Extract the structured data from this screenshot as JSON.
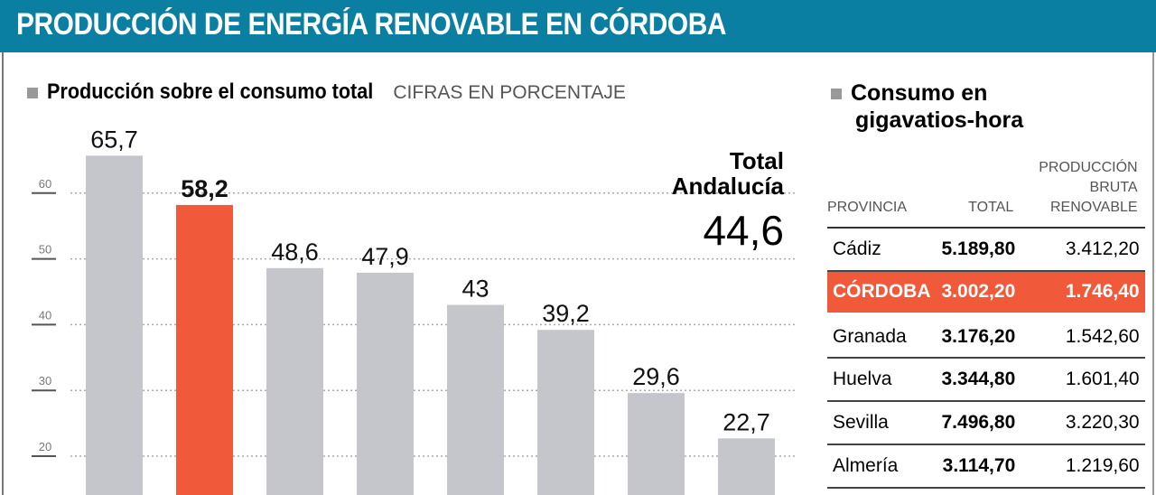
{
  "header": {
    "title": "PRODUCCIÓN DE ENERGÍA RENOVABLE EN CÓRDOBA"
  },
  "chart_data": {
    "type": "bar",
    "title": "Producción sobre el consumo total",
    "subtitle": "CIFRAS EN PORCENTAJE",
    "values": [
      65.7,
      58.2,
      48.6,
      47.9,
      43,
      39.2,
      29.6,
      22.7
    ],
    "value_labels": [
      "65,7",
      "58,2",
      "48,6",
      "47,9",
      "43",
      "39,2",
      "29,6",
      "22,7"
    ],
    "highlight_index": 1,
    "yticks": [
      20,
      30,
      40,
      50,
      60
    ],
    "ylim": [
      0,
      70
    ],
    "grid": true,
    "colors": {
      "bar": "#c4c6cb",
      "highlight": "#f05a3a"
    },
    "annotation": {
      "label": "Total Andalucía",
      "value": "44,6"
    }
  },
  "table": {
    "title_line1": "Consumo en",
    "title_line2": "gigavatios-hora",
    "headers": [
      "PROVINCIA",
      "TOTAL",
      "PRODUCCIÓN BRUTA RENOVABLE"
    ],
    "rows": [
      [
        "Cádiz",
        "5.189,80",
        "3.412,20"
      ],
      [
        "CÓRDOBA",
        "3.002,20",
        "1.746,40"
      ],
      [
        "Granada",
        "3.176,20",
        "1.542,60"
      ],
      [
        "Huelva",
        "3.344,80",
        "1.601,40"
      ],
      [
        "Sevilla",
        "7.496,80",
        "3.220,30"
      ],
      [
        "Almería",
        "3.114,70",
        "1.219,60"
      ]
    ]
  }
}
